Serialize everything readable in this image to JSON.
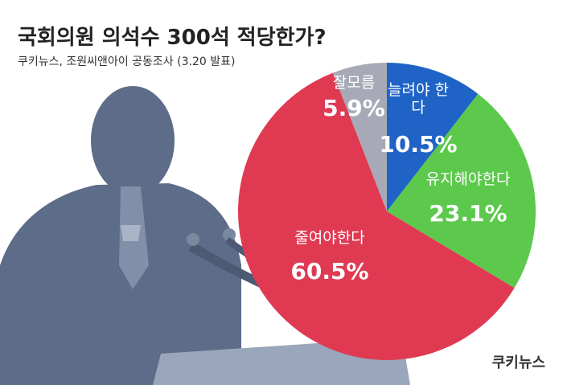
{
  "chart_data": {
    "type": "pie",
    "title": "국회의원 의석수 300석 적당한가?",
    "subtitle": "쿠키뉴스, 조원씨앤아이 공동조사 (3.20  발표)",
    "source": "쿠키뉴스",
    "categories": [
      "늘려야 한다",
      "유지해야한다",
      "줄여야한다",
      "잘모름"
    ],
    "values": [
      10.5,
      23.1,
      60.5,
      5.9
    ],
    "value_labels": [
      "10.5%",
      "23.1%",
      "60.5%",
      "5.9%"
    ],
    "colors": [
      "#1f63c6",
      "#5cc94d",
      "#e03a53",
      "#a7a9b6"
    ]
  }
}
